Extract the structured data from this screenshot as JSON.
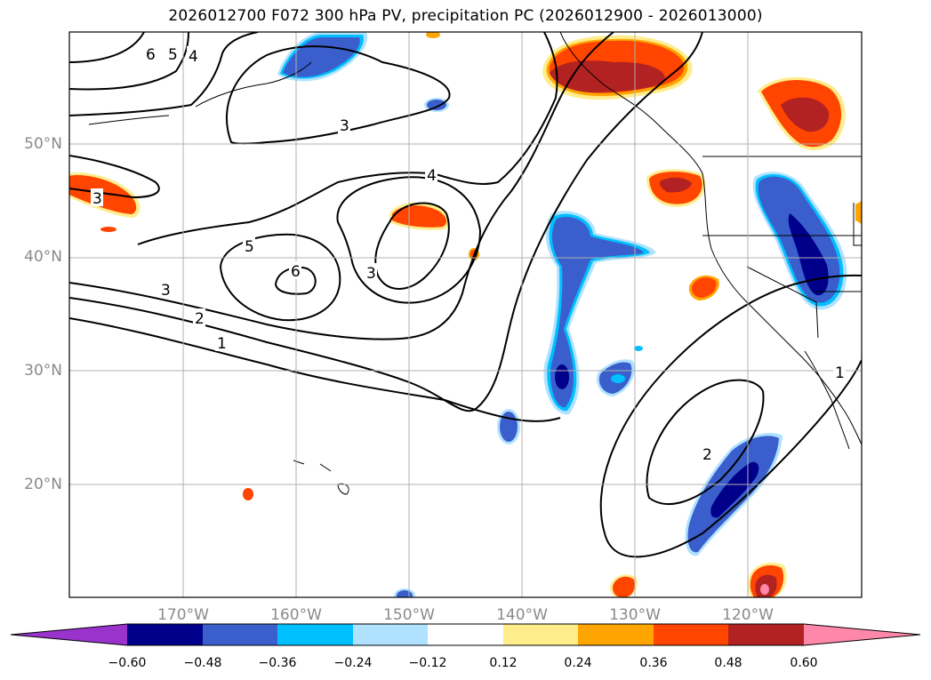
{
  "title": "2026012700 F072 300 hPa PV, precipitation PC (2026012900 - 2026013000)",
  "lat_labels": [
    "50°N",
    "40°N",
    "30°N",
    "20°N"
  ],
  "lon_labels": [
    "170°W",
    "160°W",
    "150°W",
    "140°W",
    "130°W",
    "120°W"
  ],
  "contour_labels": [
    "6",
    "5",
    "4",
    "3",
    "4",
    "3",
    "5",
    "6",
    "3",
    "3",
    "2",
    "1",
    "2",
    "1"
  ],
  "colorbar": {
    "ticks": [
      "−0.60",
      "−0.48",
      "−0.36",
      "−0.24",
      "−0.12",
      "0.12",
      "0.24",
      "0.36",
      "0.48",
      "0.60"
    ],
    "colors": [
      "#9933cc",
      "#00008b",
      "#3a5fcd",
      "#00bfff",
      "#b0e2ff",
      "#ffffff",
      "#ffec8b",
      "#ffa500",
      "#ff4500",
      "#b22222",
      "#ff88aa"
    ]
  },
  "colors": {
    "pos_low": "#ffec8b",
    "pos_mid": "#ffa500",
    "pos_high": "#ff4500",
    "pos_max": "#b22222",
    "pos_ext": "#ff88aa",
    "neg_low": "#b0e2ff",
    "neg_mid": "#00bfff",
    "neg_high": "#3a5fcd",
    "neg_max": "#00008b",
    "contour": "#000000",
    "grid": "#b0b0b0"
  }
}
